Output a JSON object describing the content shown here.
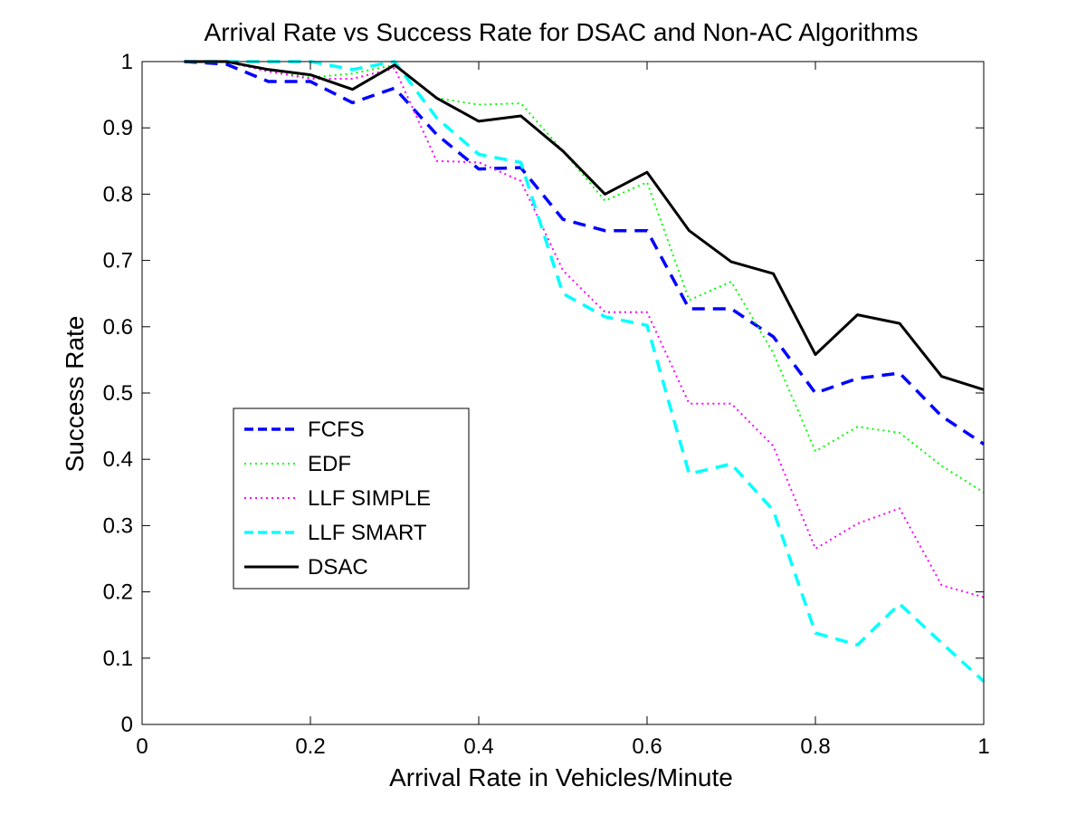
{
  "chart_data": {
    "type": "line",
    "title": "Arrival Rate vs Success Rate for DSAC and Non-AC Algorithms",
    "xlabel": "Arrival Rate in Vehicles/Minute",
    "ylabel": "Success Rate",
    "xlim": [
      0,
      1
    ],
    "ylim": [
      0,
      1
    ],
    "xticks": [
      "0",
      "0.2",
      "0.4",
      "0.6",
      "0.8",
      "1"
    ],
    "yticks": [
      "0",
      "0.1",
      "0.2",
      "0.3",
      "0.4",
      "0.5",
      "0.6",
      "0.7",
      "0.8",
      "0.9",
      "1"
    ],
    "grid": false,
    "legend_position": "left-middle",
    "x": [
      0.05,
      0.1,
      0.15,
      0.2,
      0.25,
      0.3,
      0.35,
      0.4,
      0.45,
      0.5,
      0.55,
      0.6,
      0.65,
      0.7,
      0.75,
      0.8,
      0.85,
      0.9,
      0.95,
      1.0
    ],
    "series": [
      {
        "name": "FCFS",
        "color": "#0000ff",
        "style": "dashed",
        "values": [
          1.0,
          0.996,
          0.97,
          0.97,
          0.938,
          0.96,
          0.89,
          0.838,
          0.84,
          0.762,
          0.745,
          0.745,
          0.627,
          0.627,
          0.585,
          0.5,
          0.522,
          0.53,
          0.465,
          0.423
        ]
      },
      {
        "name": "EDF",
        "color": "#00ff00",
        "style": "dotted",
        "values": [
          1.0,
          1.0,
          0.985,
          0.976,
          0.982,
          0.995,
          0.945,
          0.935,
          0.937,
          0.865,
          0.79,
          0.818,
          0.64,
          0.668,
          0.56,
          0.412,
          0.449,
          0.44,
          0.39,
          0.35
        ]
      },
      {
        "name": "LLF SIMPLE",
        "color": "#ff00ff",
        "style": "dotted",
        "values": [
          1.0,
          1.0,
          0.985,
          0.974,
          0.974,
          0.99,
          0.85,
          0.848,
          0.82,
          0.685,
          0.622,
          0.622,
          0.484,
          0.484,
          0.42,
          0.265,
          0.303,
          0.326,
          0.21,
          0.192
        ]
      },
      {
        "name": "LLF SMART",
        "color": "#00ffff",
        "style": "dashed",
        "values": [
          1.0,
          1.0,
          1.0,
          1.0,
          0.988,
          1.0,
          0.915,
          0.86,
          0.848,
          0.65,
          0.615,
          0.602,
          0.378,
          0.393,
          0.323,
          0.138,
          0.12,
          0.182,
          0.123,
          0.065
        ]
      },
      {
        "name": "DSAC",
        "color": "#000000",
        "style": "solid",
        "values": [
          1.0,
          1.0,
          0.988,
          0.98,
          0.958,
          0.995,
          0.945,
          0.91,
          0.918,
          0.865,
          0.8,
          0.833,
          0.745,
          0.698,
          0.68,
          0.558,
          0.618,
          0.605,
          0.525,
          0.505
        ]
      }
    ]
  }
}
